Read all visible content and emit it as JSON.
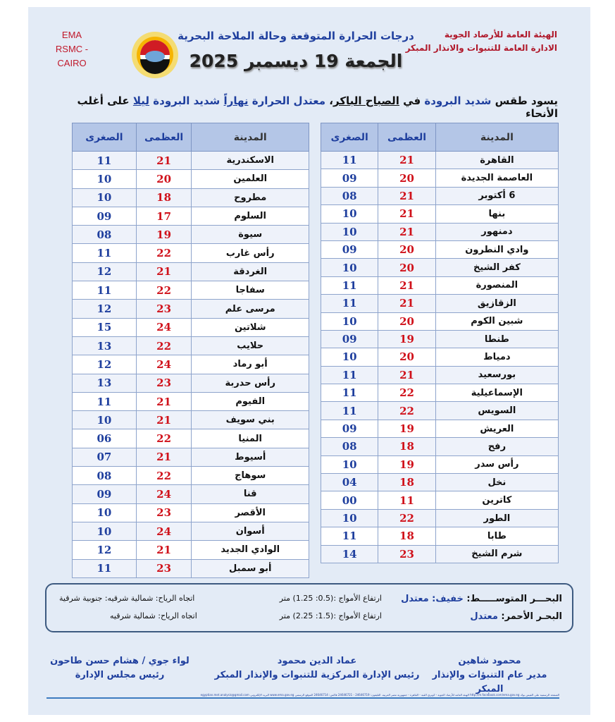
{
  "header": {
    "ema_lines": [
      "EMA",
      "RSMC - CAIRO"
    ],
    "org_lines": [
      "الهيئة العامة للأرصاد الجوية",
      "الادارة العامة للتنبوات والانذار المبكر"
    ],
    "title": "درجات الحرارة المتوقعة وحالة الملاحة البحرية",
    "date": "الجمعة 19 ديسمبر 2025",
    "logo_text": "EMA"
  },
  "headline": {
    "p1": "يسود طقس ",
    "p2": "شديد البرودة",
    "p3": " في ",
    "p4": "الصباح الباكر",
    "p5": "، ",
    "p6": "معتدل الحرارة",
    "p7": " ",
    "p8": "نهاراً",
    "p9": " ",
    "p10": "شديد البرودة",
    "p11": " ",
    "p12": "ليلا",
    "p13": " على أغلب الأنحاء"
  },
  "table_headers": {
    "city": "المدينة",
    "max": "العظمى",
    "min": "الصغرى"
  },
  "table_right": [
    {
      "city": "القاهرة",
      "max": "21",
      "min": "11"
    },
    {
      "city": "العاصمة الجديدة",
      "max": "20",
      "min": "09"
    },
    {
      "city": "6 أكتوبر",
      "max": "21",
      "min": "08"
    },
    {
      "city": "بنها",
      "max": "21",
      "min": "10"
    },
    {
      "city": "دمنهور",
      "max": "21",
      "min": "10"
    },
    {
      "city": "وادي النطرون",
      "max": "20",
      "min": "09"
    },
    {
      "city": "كفر الشيخ",
      "max": "20",
      "min": "10"
    },
    {
      "city": "المنصورة",
      "max": "21",
      "min": "11"
    },
    {
      "city": "الزقازيق",
      "max": "21",
      "min": "11"
    },
    {
      "city": "شبين الكوم",
      "max": "20",
      "min": "10"
    },
    {
      "city": "طنطا",
      "max": "19",
      "min": "09"
    },
    {
      "city": "دمياط",
      "max": "20",
      "min": "10"
    },
    {
      "city": "بورسعيد",
      "max": "21",
      "min": "11"
    },
    {
      "city": "الإسماعيلية",
      "max": "22",
      "min": "11"
    },
    {
      "city": "السويس",
      "max": "22",
      "min": "11"
    },
    {
      "city": "العريش",
      "max": "19",
      "min": "09"
    },
    {
      "city": "رفح",
      "max": "18",
      "min": "08"
    },
    {
      "city": "رأس سدر",
      "max": "19",
      "min": "10"
    },
    {
      "city": "نخل",
      "max": "18",
      "min": "04"
    },
    {
      "city": "كاترين",
      "max": "11",
      "min": "00"
    },
    {
      "city": "الطور",
      "max": "22",
      "min": "10"
    },
    {
      "city": "طابا",
      "max": "18",
      "min": "11"
    },
    {
      "city": "شرم الشيخ",
      "max": "23",
      "min": "14"
    }
  ],
  "table_left": [
    {
      "city": "الاسكندرية",
      "max": "21",
      "min": "11"
    },
    {
      "city": "العلمين",
      "max": "20",
      "min": "10"
    },
    {
      "city": "مطروح",
      "max": "18",
      "min": "10"
    },
    {
      "city": "السلوم",
      "max": "17",
      "min": "09"
    },
    {
      "city": "سيوة",
      "max": "19",
      "min": "08"
    },
    {
      "city": "رأس غارب",
      "max": "22",
      "min": "11"
    },
    {
      "city": "الغردقة",
      "max": "21",
      "min": "12"
    },
    {
      "city": "سفاجا",
      "max": "22",
      "min": "11"
    },
    {
      "city": "مرسى علم",
      "max": "23",
      "min": "12"
    },
    {
      "city": "شلاتين",
      "max": "24",
      "min": "15"
    },
    {
      "city": "حلايب",
      "max": "22",
      "min": "13"
    },
    {
      "city": "أبو رماد",
      "max": "24",
      "min": "12"
    },
    {
      "city": "رأس حدربة",
      "max": "23",
      "min": "13"
    },
    {
      "city": "الفيوم",
      "max": "21",
      "min": "11"
    },
    {
      "city": "بني سويف",
      "max": "21",
      "min": "10"
    },
    {
      "city": "المنيا",
      "max": "22",
      "min": "06"
    },
    {
      "city": "أسيوط",
      "max": "21",
      "min": "07"
    },
    {
      "city": "سوهاج",
      "max": "22",
      "min": "08"
    },
    {
      "city": "قنا",
      "max": "24",
      "min": "09"
    },
    {
      "city": "الأقصر",
      "max": "23",
      "min": "10"
    },
    {
      "city": "أسوان",
      "max": "24",
      "min": "10"
    },
    {
      "city": "الوادي الجديد",
      "max": "21",
      "min": "12"
    },
    {
      "city": "أبو سمبل",
      "max": "23",
      "min": "11"
    }
  ],
  "sea": {
    "med": {
      "name": "البحـــر المتوســـــط:",
      "state": "خفيف: معتدل",
      "waves": "ارتفاع الأمواج :(0.5: 1.25) متر",
      "wind": "اتجاه الرياح: شمالية شرقيه: جنوبية شرقية"
    },
    "red": {
      "name": "البحـر الأحمر:",
      "state": "معتدل",
      "waves": "ارتفاع الأمواج :(1.5: 2.25) متر",
      "wind": "اتجاه الرياح: شمالية شرقيه"
    }
  },
  "signatures": [
    {
      "name": "محمود شاهين",
      "title": "مدير عام التنبؤات والإنذار المبكر"
    },
    {
      "name": "عماد الدين محمود",
      "title": "رئيس الإدارة المركزية للتنبوات والإنذار المبكر"
    },
    {
      "name": "لواء جوي / هشام حسن طاحون",
      "title": "رئيس مجلس الإدارة"
    }
  ],
  "footer": "الصفحة الرسمية على الفيس بوك http://m.facebook.com/ema.gov.eg الهيئة العامة للأرصاد الجوية - كوبري القبة - القاهرة - جمهورية مصر العربية. التليفون: 24646719 - 24646721 فاكس: 24646714 الموقع الرسمي www.ema.gov.eg البريد الإلكتروني egyptian.met.analysis@gmail.com",
  "colors": {
    "background": "#e3ebf6",
    "header_blue": "#1f3f9e",
    "max_red": "#d0121b",
    "table_header": "#b4c6e7",
    "org_red": "#b0182a"
  }
}
